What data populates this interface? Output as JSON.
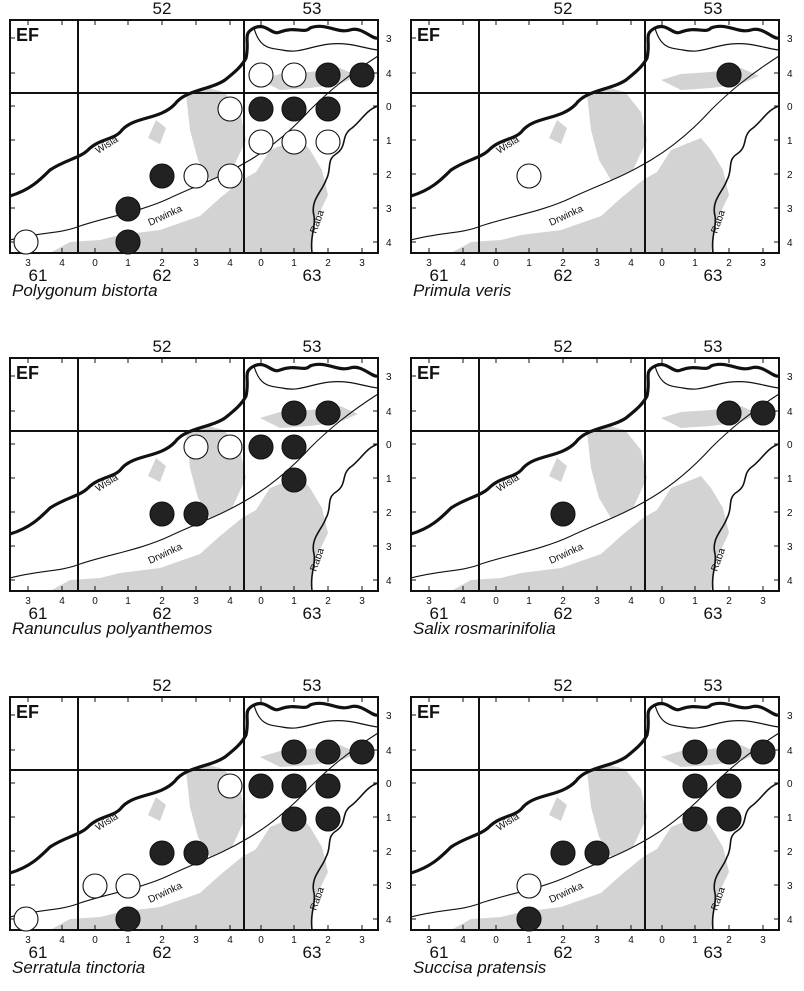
{
  "figure": {
    "corner_label": "EF",
    "col_major": [
      "52",
      "53"
    ],
    "row_major": [
      "61",
      "62",
      "63"
    ],
    "col_ticks": [
      "3",
      "4",
      "0",
      "1",
      "2",
      "3",
      "4",
      "0",
      "1",
      "2",
      "3"
    ],
    "row_ticks": [
      "3",
      "4",
      "0",
      "1",
      "2",
      "3",
      "4"
    ],
    "rivers": {
      "wisla": "Wisla",
      "drwinka": "Drwinka",
      "raba": "Raba"
    },
    "colors": {
      "present": "#222222",
      "historical": "#ffffff",
      "forest": "#d3d3d3",
      "frame": "#111111"
    }
  },
  "panels": [
    {
      "species": "Polygonum bistorta",
      "records": [
        {
          "col": "0",
          "row": "4",
          "status": "historical",
          "row_grid": "53"
        },
        {
          "col": "1",
          "row": "4",
          "status": "historical",
          "row_grid": "53"
        },
        {
          "col": "2",
          "row": "4",
          "status": "present",
          "row_grid": "53"
        },
        {
          "col": "3",
          "row": "4",
          "status": "present",
          "row_grid": "53"
        },
        {
          "col": "4",
          "row": "0",
          "status": "historical",
          "row_grid": "52"
        },
        {
          "col": "0",
          "row": "0",
          "status": "present",
          "row_grid": "53"
        },
        {
          "col": "1",
          "row": "0",
          "status": "present",
          "row_grid": "53"
        },
        {
          "col": "2",
          "row": "0",
          "status": "present",
          "row_grid": "53"
        },
        {
          "col": "0",
          "row": "1",
          "status": "historical",
          "row_grid": "53"
        },
        {
          "col": "1",
          "row": "1",
          "status": "historical",
          "row_grid": "53"
        },
        {
          "col": "2",
          "row": "1",
          "status": "historical",
          "row_grid": "53"
        },
        {
          "col": "2",
          "row": "2",
          "status": "present",
          "row_grid": "52"
        },
        {
          "col": "3",
          "row": "2",
          "status": "historical",
          "row_grid": "52"
        },
        {
          "col": "4",
          "row": "2",
          "status": "historical",
          "row_grid": "52"
        },
        {
          "col": "1",
          "row": "3",
          "status": "present",
          "row_grid": "52"
        },
        {
          "col": "3",
          "row": "4",
          "status": "historical",
          "row_grid": "52"
        },
        {
          "col": "1",
          "row": "4",
          "status": "present",
          "row_grid": "52"
        }
      ]
    },
    {
      "species": "Primula veris",
      "records": [
        {
          "col": "2",
          "row": "4",
          "status": "present",
          "row_grid": "53"
        },
        {
          "col": "1",
          "row": "2",
          "status": "historical",
          "row_grid": "52"
        }
      ]
    },
    {
      "species": "Ranunculus polyanthemos",
      "records": [
        {
          "col": "1",
          "row": "4",
          "status": "present",
          "row_grid": "53"
        },
        {
          "col": "2",
          "row": "4",
          "status": "present",
          "row_grid": "53"
        },
        {
          "col": "3",
          "row": "0",
          "status": "historical",
          "row_grid": "52"
        },
        {
          "col": "4",
          "row": "0",
          "status": "historical",
          "row_grid": "52"
        },
        {
          "col": "0",
          "row": "0",
          "status": "present",
          "row_grid": "53"
        },
        {
          "col": "1",
          "row": "0",
          "status": "present",
          "row_grid": "53"
        },
        {
          "col": "1",
          "row": "1",
          "status": "present",
          "row_grid": "53"
        },
        {
          "col": "2",
          "row": "2",
          "status": "present",
          "row_grid": "52"
        },
        {
          "col": "3",
          "row": "2",
          "status": "present",
          "row_grid": "52"
        }
      ]
    },
    {
      "species": "Salix rosmarinifolia",
      "records": [
        {
          "col": "2",
          "row": "4",
          "status": "present",
          "row_grid": "53"
        },
        {
          "col": "3",
          "row": "4",
          "status": "present",
          "row_grid": "53"
        },
        {
          "col": "2",
          "row": "2",
          "status": "present",
          "row_grid": "52"
        }
      ]
    },
    {
      "species": "Serratula tinctoria",
      "records": [
        {
          "col": "1",
          "row": "4",
          "status": "present",
          "row_grid": "53"
        },
        {
          "col": "2",
          "row": "4",
          "status": "present",
          "row_grid": "53"
        },
        {
          "col": "3",
          "row": "4",
          "status": "present",
          "row_grid": "53"
        },
        {
          "col": "4",
          "row": "0",
          "status": "historical",
          "row_grid": "52"
        },
        {
          "col": "0",
          "row": "0",
          "status": "present",
          "row_grid": "53"
        },
        {
          "col": "1",
          "row": "0",
          "status": "present",
          "row_grid": "53"
        },
        {
          "col": "2",
          "row": "0",
          "status": "present",
          "row_grid": "53"
        },
        {
          "col": "1",
          "row": "1",
          "status": "present",
          "row_grid": "53"
        },
        {
          "col": "2",
          "row": "1",
          "status": "present",
          "row_grid": "53"
        },
        {
          "col": "2",
          "row": "2",
          "status": "present",
          "row_grid": "52"
        },
        {
          "col": "3",
          "row": "2",
          "status": "present",
          "row_grid": "52"
        },
        {
          "col": "0",
          "row": "3",
          "status": "historical",
          "row_grid": "52"
        },
        {
          "col": "1",
          "row": "3",
          "status": "historical",
          "row_grid": "52"
        },
        {
          "col": "3",
          "row": "4",
          "status": "historical",
          "row_grid": "52"
        },
        {
          "col": "1",
          "row": "4",
          "status": "present",
          "row_grid": "52"
        }
      ]
    },
    {
      "species": "Succisa pratensis",
      "records": [
        {
          "col": "1",
          "row": "4",
          "status": "present",
          "row_grid": "53"
        },
        {
          "col": "2",
          "row": "4",
          "status": "present",
          "row_grid": "53"
        },
        {
          "col": "3",
          "row": "4",
          "status": "present",
          "row_grid": "53"
        },
        {
          "col": "1",
          "row": "0",
          "status": "present",
          "row_grid": "53"
        },
        {
          "col": "2",
          "row": "0",
          "status": "present",
          "row_grid": "53"
        },
        {
          "col": "1",
          "row": "1",
          "status": "present",
          "row_grid": "53"
        },
        {
          "col": "2",
          "row": "1",
          "status": "present",
          "row_grid": "53"
        },
        {
          "col": "2",
          "row": "2",
          "status": "present",
          "row_grid": "52"
        },
        {
          "col": "3",
          "row": "2",
          "status": "present",
          "row_grid": "52"
        },
        {
          "col": "1",
          "row": "3",
          "status": "historical",
          "row_grid": "52"
        },
        {
          "col": "1",
          "row": "4",
          "status": "present",
          "row_grid": "52"
        }
      ]
    }
  ]
}
